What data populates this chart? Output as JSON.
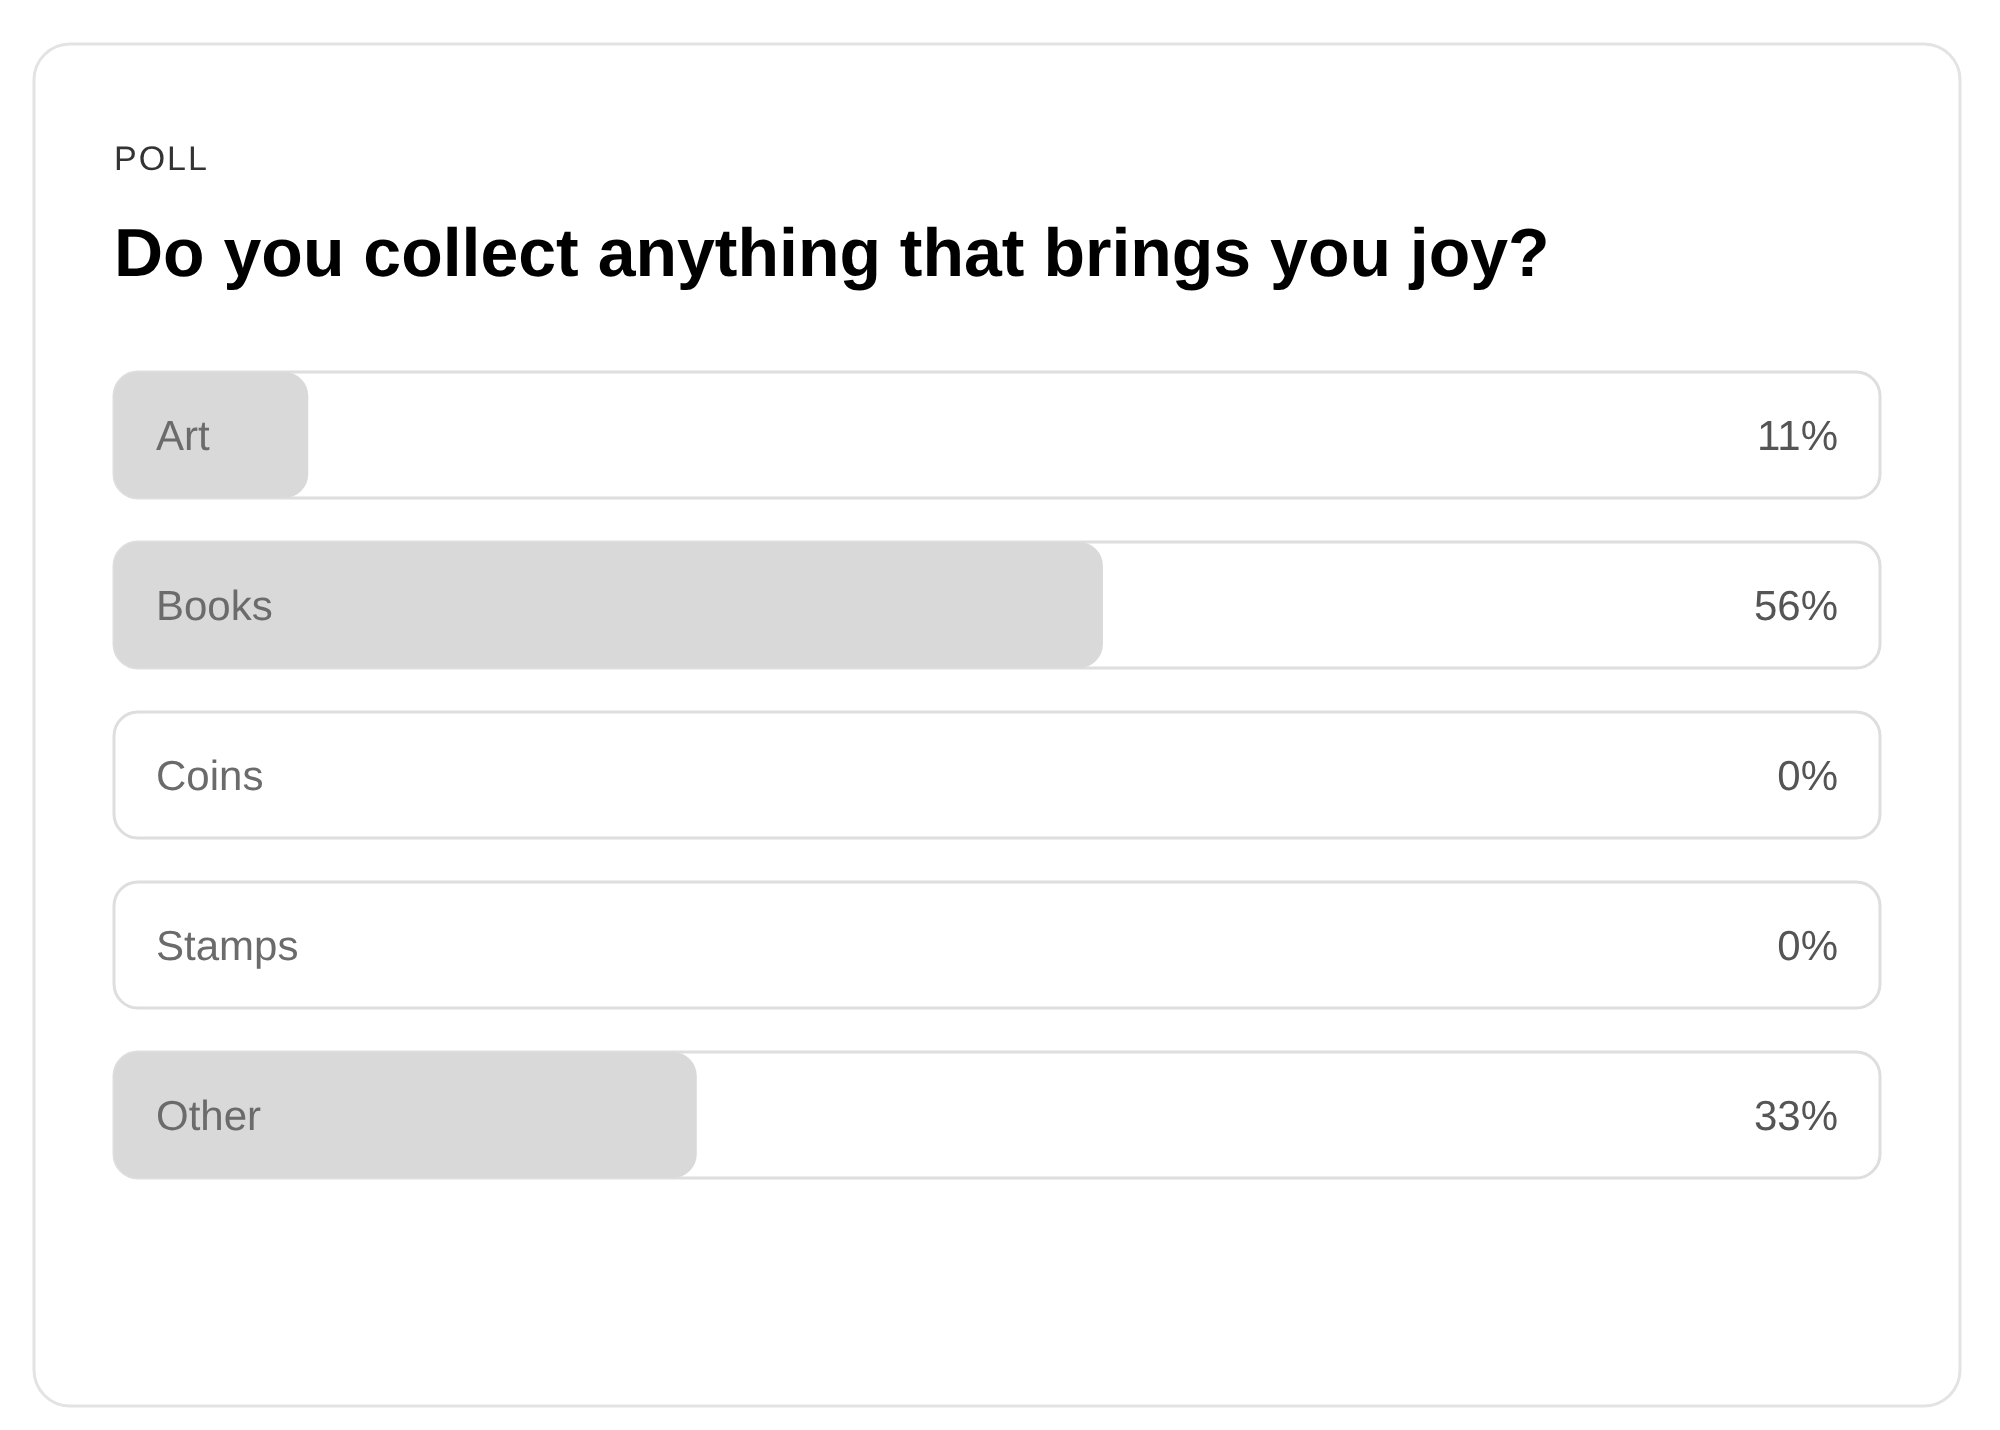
{
  "chart_data": {
    "type": "bar",
    "orientation": "horizontal",
    "subtitle": "POLL",
    "title": "Do you collect anything that brings you joy?",
    "categories": [
      "Art",
      "Books",
      "Coins",
      "Stamps",
      "Other"
    ],
    "values": [
      11,
      56,
      0,
      0,
      33
    ],
    "value_labels": [
      "11%",
      "56%",
      "0%",
      "0%",
      "33%"
    ],
    "color": "#d9d9d9",
    "xlim": [
      0,
      100
    ]
  }
}
